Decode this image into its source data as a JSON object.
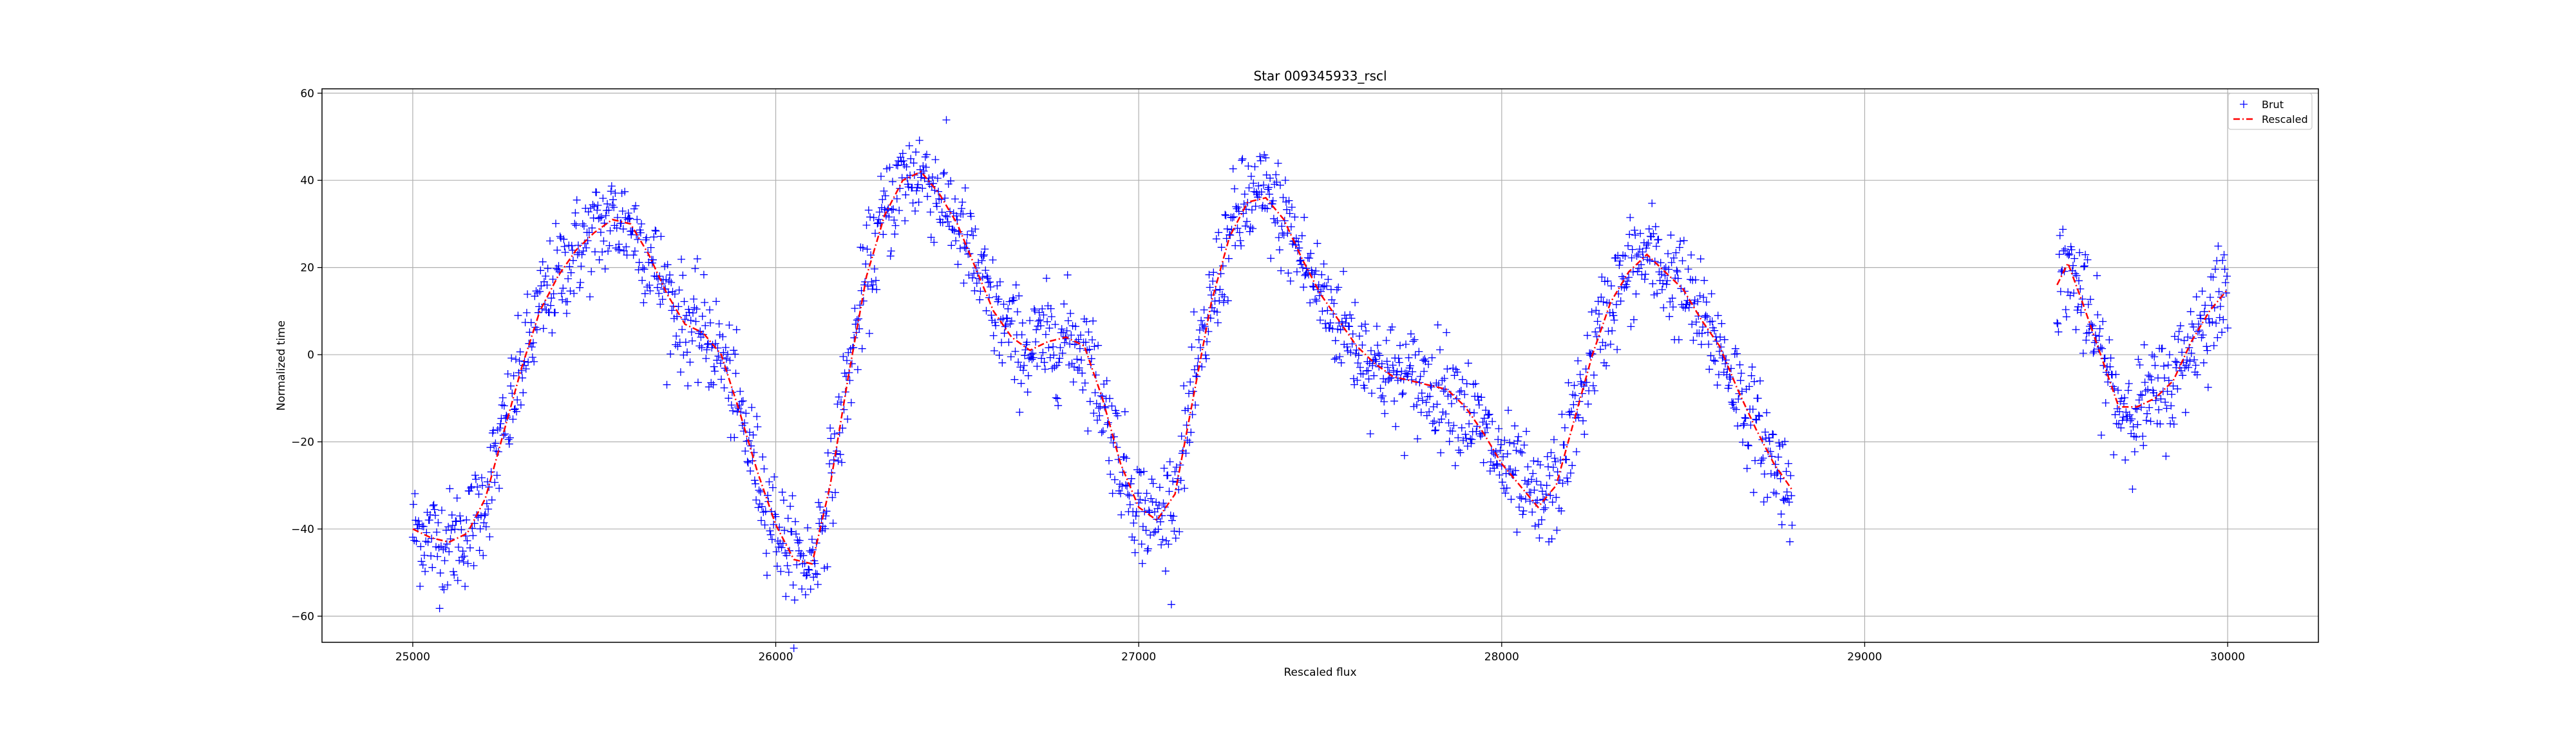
{
  "chart_data": {
    "type": "scatter",
    "title": "Star 009345933_rscl",
    "xlabel": "Rescaled flux",
    "ylabel": "Normalized time",
    "xlim": [
      24750,
      30250
    ],
    "ylim": [
      -66,
      61
    ],
    "grid": true,
    "legend_position": "top-right",
    "x_ticks": [
      25000,
      26000,
      27000,
      28000,
      29000,
      30000
    ],
    "x_tick_labels": [
      "25000",
      "26000",
      "27000",
      "28000",
      "29000",
      "30000"
    ],
    "y_ticks": [
      60,
      40,
      20,
      0,
      -20,
      -40,
      -60
    ],
    "y_tick_labels": [
      "60",
      "40",
      "20",
      "0",
      "−20",
      "−40",
      "−60"
    ],
    "series": [
      {
        "name": "Brut",
        "style": "markers-plus",
        "color": "#0000ff",
        "noise_amplitude": 6,
        "segments": [
          {
            "x_start": 25000,
            "x_end": 28800,
            "step": 2
          },
          {
            "x_start": 29530,
            "x_end": 30000,
            "step": 2
          }
        ]
      },
      {
        "name": "Rescaled",
        "style": "dash-dot",
        "color": "#ff0000",
        "segments": [
          {
            "x": [
              25000,
              25050,
              25100,
              25150,
              25200,
              25250,
              25300,
              25350,
              25400,
              25450,
              25500,
              25550,
              25600,
              25650,
              25700,
              25750,
              25800,
              25850,
              25900,
              25950,
              26000,
              26050,
              26100,
              26150,
              26200,
              26250,
              26300,
              26350,
              26400,
              26450,
              26500,
              26550,
              26600,
              26650,
              26700,
              26750,
              26800,
              26850,
              26900,
              26950,
              27000,
              27050,
              27100,
              27150,
              27200,
              27250,
              27300,
              27350,
              27400,
              27450,
              27500,
              27550,
              27600,
              27650,
              27700,
              27750,
              27800,
              27850,
              27900,
              27950,
              28000,
              28050,
              28100,
              28150,
              28200,
              28250,
              28300,
              28350,
              28400,
              28450,
              28500,
              28550,
              28600,
              28650,
              28700,
              28750,
              28800
            ],
            "y": [
              -40,
              -42,
              -43,
              -41,
              -33,
              -18,
              -3,
              10,
              18,
              24,
              28,
              31,
              30,
              23,
              14,
              7,
              5,
              0,
              -13,
              -27,
              -39,
              -47,
              -48,
              -30,
              -5,
              18,
              32,
              40,
              42,
              37,
              30,
              20,
              10,
              4,
              1,
              3,
              4,
              2,
              -10,
              -25,
              -35,
              -38,
              -32,
              -10,
              12,
              27,
              35,
              36,
              31,
              22,
              14,
              8,
              2,
              -2,
              -5,
              -6,
              -7,
              -8,
              -12,
              -18,
              -25,
              -30,
              -35,
              -30,
              -15,
              0,
              12,
              19,
              23,
              19,
              15,
              8,
              2,
              -8,
              -17,
              -25,
              -31
            ]
          },
          {
            "x": [
              29530,
              29560,
              29600,
              29650,
              29700,
              29750,
              29800,
              29850,
              29900,
              29950,
              30000
            ],
            "y": [
              16,
              21,
              12,
              0,
              -12,
              -12,
              -10,
              -6,
              3,
              10,
              15
            ]
          }
        ]
      }
    ]
  }
}
